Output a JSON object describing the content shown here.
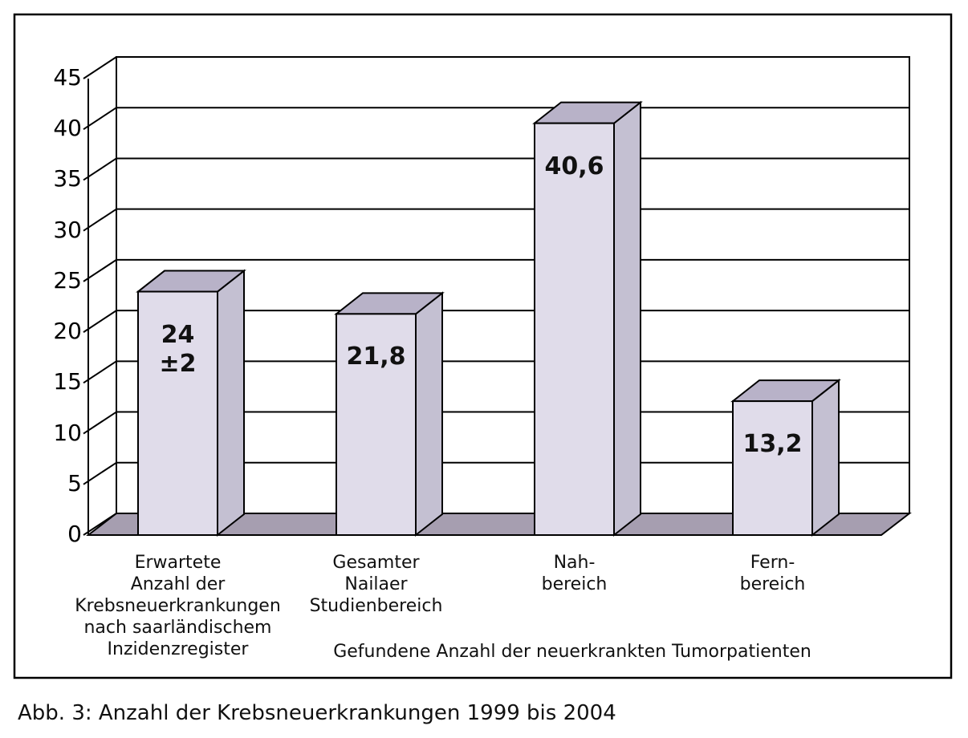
{
  "chart_data": {
    "type": "bar3d",
    "categories": [
      "Erwartete\nAnzahl der\nKrebsneuerkrankungen\nnach saarländischem\nInzidenzregister",
      "Gesamter\nNailaer\nStudienbereich",
      "Nah-\nbereich",
      "Fern-\nbereich"
    ],
    "values": [
      24,
      21.8,
      40.6,
      13.2
    ],
    "value_labels": [
      "24\n±2",
      "21,8",
      "40,6",
      "13,2"
    ],
    "xlabel": "Gefundene Anzahl der neuerkrankten Tumorpatienten",
    "caption": "Abb. 3: Anzahl der Krebsneuerkrankungen 1999 bis 2004",
    "ylim": [
      0,
      45
    ],
    "yticks": [
      0,
      5,
      10,
      15,
      20,
      25,
      30,
      35,
      40,
      45
    ],
    "grid": true,
    "color": "#e0dcea",
    "side_color": "#c4c0d2",
    "top_color": "#b8b2c8",
    "floor_color": "#a69eb0"
  }
}
